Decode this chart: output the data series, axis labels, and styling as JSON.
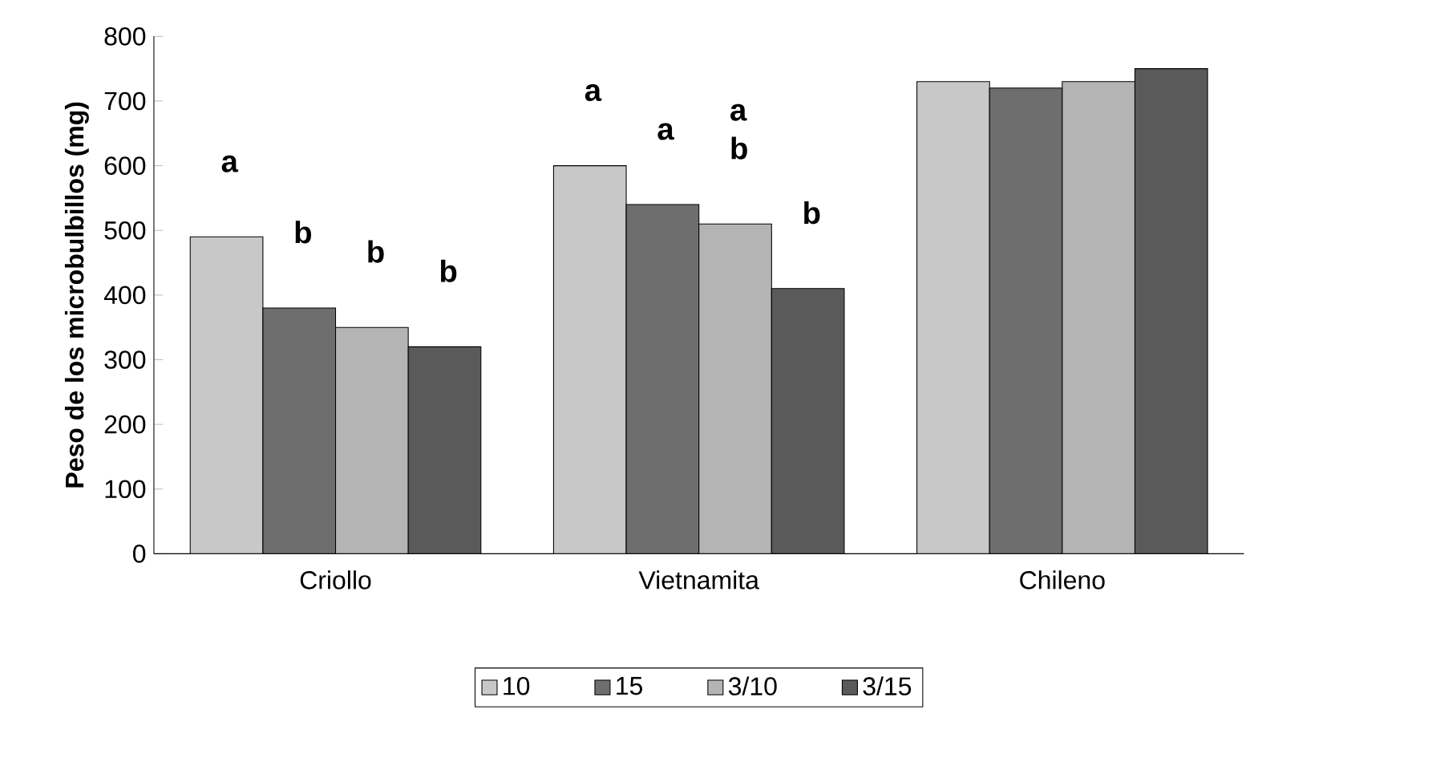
{
  "chart_data": {
    "type": "bar",
    "ylabel": "Peso de los microbulbillos (mg)",
    "categories": [
      "Criollo",
      "Vietnamita",
      "Chileno"
    ],
    "series": [
      {
        "name": "10",
        "color": "#c8c8c8",
        "values": [
          490,
          600,
          730
        ]
      },
      {
        "name": "15",
        "color": "#6e6e6e",
        "values": [
          380,
          540,
          720
        ]
      },
      {
        "name": "3/10",
        "color": "#b4b4b4",
        "values": [
          350,
          510,
          730
        ]
      },
      {
        "name": "3/15",
        "color": "#5a5a5a",
        "values": [
          320,
          410,
          750
        ]
      }
    ],
    "ylim": [
      0,
      800
    ],
    "yticks": [
      0,
      100,
      200,
      300,
      400,
      500,
      600,
      700,
      800
    ],
    "grid": false,
    "legend": "bottom",
    "annotations": [
      "a",
      "b",
      "b",
      "b",
      "a",
      "a",
      "a b",
      "b"
    ]
  }
}
